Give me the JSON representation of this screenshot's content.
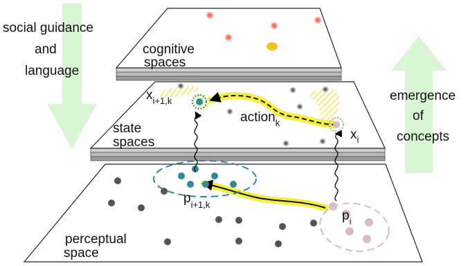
{
  "left_arrow": {
    "line1": "social guidance",
    "line2": "and",
    "line3": "language",
    "color": "#d8f5d4"
  },
  "right_arrow": {
    "line1": "emergence",
    "line2": "of",
    "line3": "concepts",
    "color": "#d8f5d4"
  },
  "planes": {
    "cognitive": {
      "line1": "cognitive",
      "line2": "spaces"
    },
    "state": {
      "line1": "state",
      "line2": "spaces"
    },
    "perceptual": {
      "line1": "perceptual",
      "line2": "space"
    }
  },
  "labels": {
    "x_next": {
      "base": "x",
      "sub": "i+1,k"
    },
    "x_i": {
      "base": "x",
      "sub": "i"
    },
    "action": {
      "base": "action",
      "sub": "k"
    },
    "p_next": {
      "base": "p",
      "sub": "i+1,k"
    },
    "p_i": {
      "base": "p",
      "sub": "i"
    }
  },
  "colors": {
    "red_dot": "#f36a5a",
    "gold_dot": "#f7c21c",
    "gray_dot": "#555555",
    "teal": "#2e8a9a",
    "pink": "#d6bcc7",
    "yellow_path": "#f5ee3a"
  }
}
